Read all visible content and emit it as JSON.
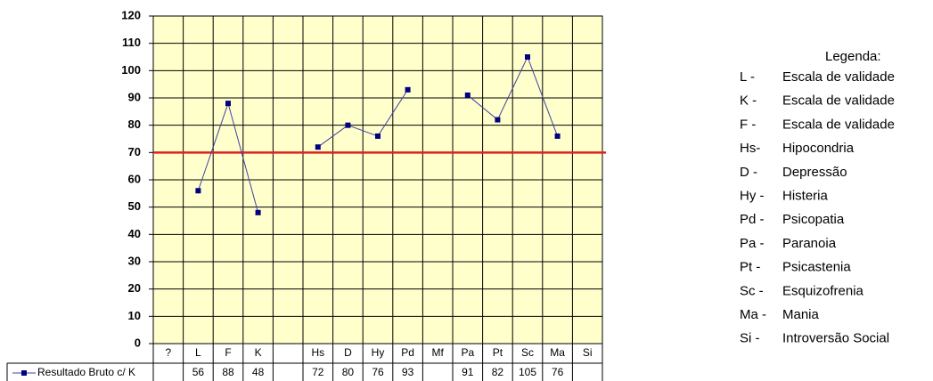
{
  "chart_data": {
    "type": "line",
    "categories": [
      "?",
      "L",
      "F",
      "K",
      null,
      "Hs",
      "D",
      "Hy",
      "Pd",
      "Mf",
      "Pa",
      "Pt",
      "Sc",
      "Ma",
      "Si"
    ],
    "series": [
      {
        "name": "Resultado Bruto c/ K",
        "color": "#000080",
        "values": [
          null,
          56,
          88,
          48,
          null,
          72,
          80,
          76,
          93,
          null,
          91,
          82,
          105,
          76,
          null
        ]
      }
    ],
    "ylim": [
      0,
      120
    ],
    "yticks": [
      0,
      10,
      20,
      30,
      40,
      50,
      60,
      70,
      80,
      90,
      100,
      110,
      120
    ],
    "grid": true,
    "plot_background": "#ffffcc",
    "reference_line": {
      "value": 70,
      "color": "#e02020"
    },
    "legend_box": {
      "title": "Legenda:",
      "items": [
        {
          "code": "L -",
          "text": "Escala de validade"
        },
        {
          "code": "K -",
          "text": "Escala de validade"
        },
        {
          "code": "F -",
          "text": "Escala de validade"
        },
        {
          "code": "Hs-",
          "text": "Hipocondria"
        },
        {
          "code": "D -",
          "text": "Depressão"
        },
        {
          "code": "Hy -",
          "text": "Histeria"
        },
        {
          "code": "Pd -",
          "text": "Psicopatia"
        },
        {
          "code": "Pa -",
          "text": "Paranoia"
        },
        {
          "code": "Pt -",
          "text": "Psicastenia"
        },
        {
          "code": "Sc -",
          "text": "Esquizofrenia"
        },
        {
          "code": "Ma -",
          "text": "Mania"
        },
        {
          "code": "Si -",
          "text": "Introversão Social"
        }
      ]
    }
  }
}
